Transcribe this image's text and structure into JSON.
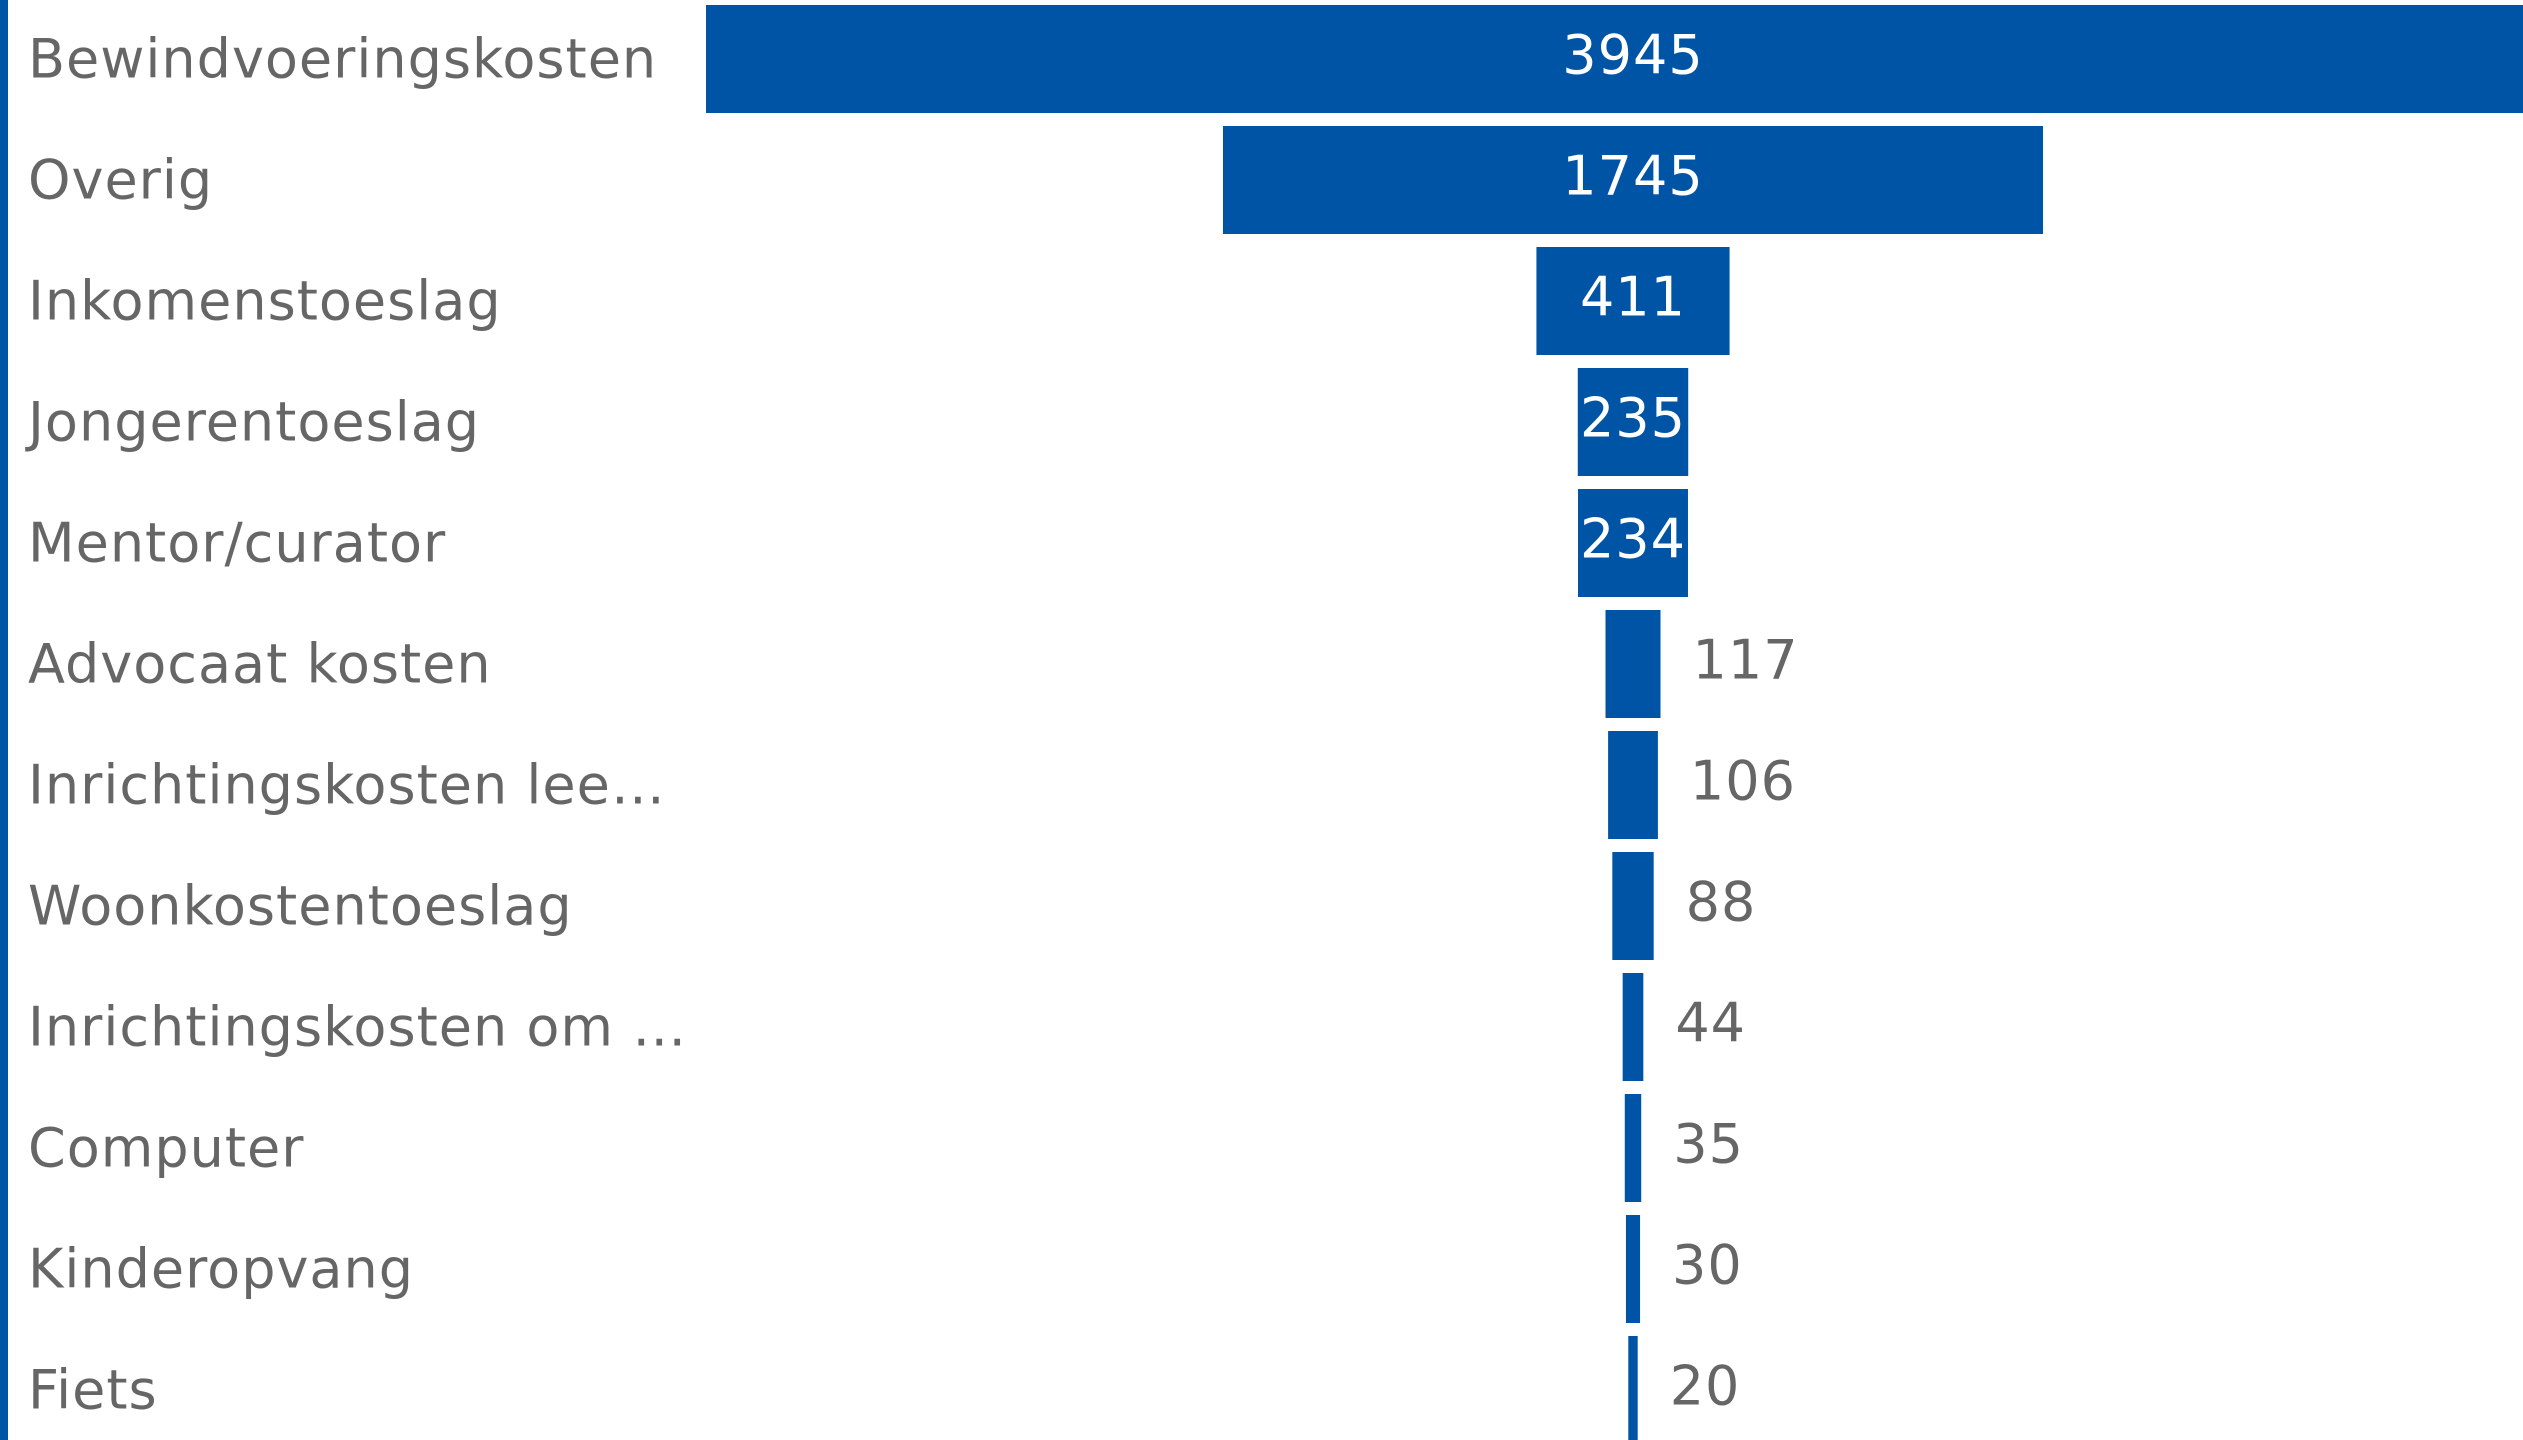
{
  "chart_data": {
    "type": "funnel",
    "categories": [
      "Bewindvoeringskosten",
      "Overig",
      "Inkomenstoeslag",
      "Jongerentoeslag",
      "Mentor/curator",
      "Advocaat kosten",
      "Inrichtingskosten lee…",
      "Woonkostentoeslag",
      "Inrichtingskosten om …",
      "Computer",
      "Kinderopvang",
      "Fiets"
    ],
    "values": [
      3945,
      1745,
      411,
      235,
      234,
      117,
      106,
      88,
      44,
      35,
      30,
      20
    ],
    "color": "#0054a6"
  }
}
